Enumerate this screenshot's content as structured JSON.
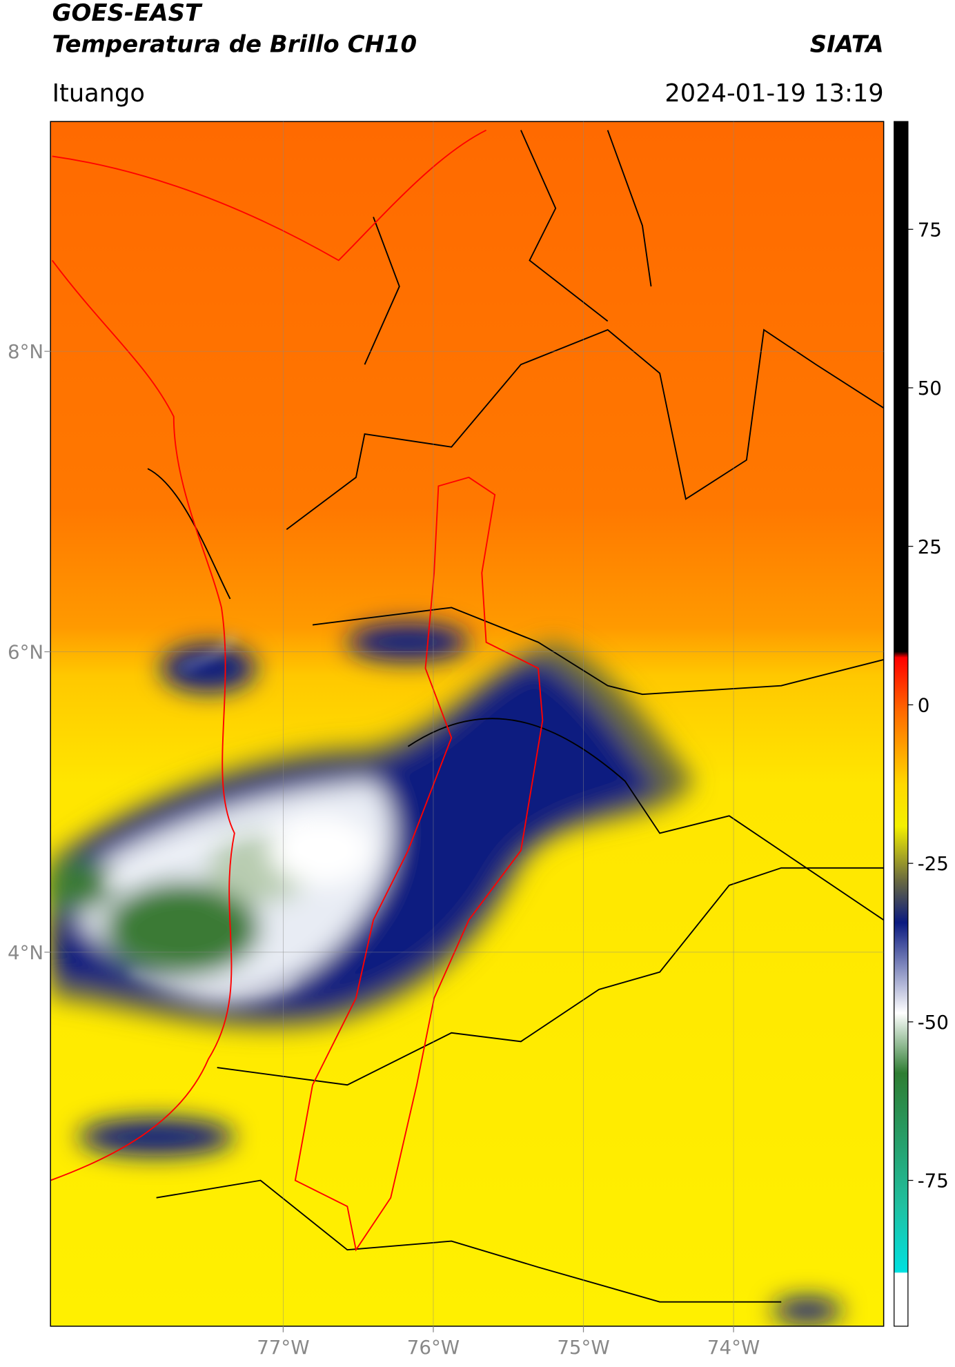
{
  "header": {
    "title": "GOES-EAST",
    "subtitle": "Temperatura de Brillo CH10",
    "agency": "SIATA",
    "location": "Ituango",
    "datetime": "2024-01-19 13:19"
  },
  "map": {
    "type": "map",
    "xlim": [
      -78.55,
      -73.0
    ],
    "ylim": [
      1.51,
      9.53
    ],
    "xticks": [
      {
        "value": -77,
        "label": "77°W"
      },
      {
        "value": -76,
        "label": "76°W"
      },
      {
        "value": -75,
        "label": "75°W"
      },
      {
        "value": -74,
        "label": "74°W"
      }
    ],
    "yticks": [
      {
        "value": 8,
        "label": "8°N"
      },
      {
        "value": 6,
        "label": "6°N"
      },
      {
        "value": 4,
        "label": "4°N"
      }
    ],
    "grid": true
  },
  "colorbar": {
    "clim": [
      -98,
      92
    ],
    "ticks": [
      75,
      50,
      25,
      0,
      -25,
      -50,
      -75
    ]
  }
}
